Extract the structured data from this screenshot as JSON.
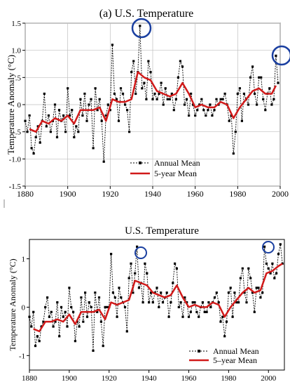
{
  "chart_data": [
    {
      "type": "line",
      "title": "(a) U.S. Temperature",
      "ylabel": "Temperature Anomaly (°C)",
      "xlabel": "",
      "xlim": [
        1880,
        2000
      ],
      "ylim": [
        -1.5,
        1.5
      ],
      "xticks": [
        "1880",
        "1900",
        "1920",
        "1940",
        "1960",
        "1980",
        "2000"
      ],
      "yticks": [
        "1.5",
        "1.0",
        ".5",
        "0",
        "-.5",
        "-1.0",
        "-1.5"
      ],
      "grid": true,
      "legend": "bottom-center",
      "series": [
        {
          "name": "Annual Mean",
          "x": [
            1880,
            1881,
            1882,
            1883,
            1884,
            1885,
            1886,
            1887,
            1888,
            1889,
            1890,
            1891,
            1892,
            1893,
            1894,
            1895,
            1896,
            1897,
            1898,
            1899,
            1900,
            1901,
            1902,
            1903,
            1904,
            1905,
            1906,
            1907,
            1908,
            1909,
            1910,
            1911,
            1912,
            1913,
            1914,
            1915,
            1916,
            1917,
            1918,
            1919,
            1920,
            1921,
            1922,
            1923,
            1924,
            1925,
            1926,
            1927,
            1928,
            1929,
            1930,
            1931,
            1932,
            1933,
            1934,
            1935,
            1936,
            1937,
            1938,
            1939,
            1940,
            1941,
            1942,
            1943,
            1944,
            1945,
            1946,
            1947,
            1948,
            1949,
            1950,
            1951,
            1952,
            1953,
            1954,
            1955,
            1956,
            1957,
            1958,
            1959,
            1960,
            1961,
            1962,
            1963,
            1964,
            1965,
            1966,
            1967,
            1968,
            1969,
            1970,
            1971,
            1972,
            1973,
            1974,
            1975,
            1976,
            1977,
            1978,
            1979,
            1980,
            1981,
            1982,
            1983,
            1984,
            1985,
            1986,
            1987,
            1988,
            1989,
            1990,
            1991,
            1992,
            1993,
            1994,
            1995,
            1996,
            1997,
            1998,
            1999
          ],
          "values": [
            -0.3,
            -0.5,
            -0.2,
            -0.8,
            -0.9,
            -0.6,
            -0.4,
            -0.7,
            -0.3,
            0.2,
            -0.4,
            -0.2,
            -0.5,
            -0.3,
            0.0,
            -0.6,
            -0.1,
            -0.3,
            -0.2,
            -0.5,
            0.3,
            -0.2,
            -0.1,
            -0.6,
            -0.4,
            -0.5,
            0.1,
            -0.2,
            0.2,
            -0.3,
            0.0,
            0.1,
            -0.8,
            0.3,
            -0.1,
            0.1,
            -0.3,
            -1.05,
            -0.2,
            0.0,
            -0.1,
            1.1,
            0.2,
            0.1,
            -0.3,
            0.3,
            0.2,
            0.0,
            -0.1,
            -0.5,
            0.6,
            0.8,
            0.2,
            0.6,
            1.45,
            0.3,
            0.4,
            0.1,
            0.8,
            0.6,
            0.1,
            0.2,
            0.1,
            0.2,
            0.4,
            0.0,
            0.3,
            0.1,
            0.1,
            0.2,
            -0.1,
            0.1,
            0.5,
            0.8,
            0.7,
            0.0,
            0.1,
            -0.2,
            0.2,
            0.0,
            -0.2,
            -0.1,
            0.0,
            0.1,
            -0.1,
            -0.2,
            -0.1,
            0.0,
            -0.2,
            -0.1,
            0.1,
            0.0,
            0.1,
            0.1,
            0.2,
            0.0,
            -0.3,
            -0.2,
            -0.9,
            -0.5,
            0.2,
            0.3,
            -0.3,
            0.2,
            0.1,
            0.0,
            0.5,
            0.7,
            0.2,
            0.0,
            0.5,
            0.5,
            0.1,
            -0.1,
            0.2,
            0.3,
            0.0,
            0.1,
            0.9,
            0.4
          ]
        },
        {
          "name": "5-year Mean",
          "x": [
            1882,
            1885,
            1888,
            1891,
            1894,
            1897,
            1900,
            1903,
            1906,
            1909,
            1912,
            1915,
            1918,
            1921,
            1924,
            1927,
            1930,
            1933,
            1936,
            1939,
            1942,
            1945,
            1948,
            1951,
            1954,
            1957,
            1960,
            1963,
            1966,
            1969,
            1972,
            1975,
            1978,
            1981,
            1984,
            1987,
            1990,
            1993,
            1996,
            1998
          ],
          "values": [
            -0.45,
            -0.5,
            -0.3,
            -0.35,
            -0.25,
            -0.3,
            -0.2,
            -0.35,
            -0.1,
            -0.1,
            -0.1,
            -0.05,
            -0.3,
            0.1,
            0.05,
            0.05,
            0.1,
            0.6,
            0.5,
            0.45,
            0.25,
            0.2,
            0.15,
            0.2,
            0.4,
            0.2,
            -0.05,
            0.0,
            -0.05,
            -0.05,
            0.05,
            0.0,
            -0.25,
            -0.05,
            0.1,
            0.25,
            0.3,
            0.2,
            0.2,
            0.35
          ]
        }
      ]
    },
    {
      "type": "line",
      "title": "U.S. Temperature",
      "ylabel": "Temperature Anomaly (°C)",
      "xlabel": "",
      "xlim": [
        1880,
        2008
      ],
      "ylim": [
        -1.3,
        1.4
      ],
      "xticks": [
        "1880",
        "1900",
        "1920",
        "1940",
        "1960",
        "1980",
        "2000"
      ],
      "yticks": [
        "1",
        "0",
        "-1"
      ],
      "grid": false,
      "legend": "bottom-right",
      "series": [
        {
          "name": "Annual Mean",
          "x": [
            1880,
            1881,
            1882,
            1883,
            1884,
            1885,
            1886,
            1887,
            1888,
            1889,
            1890,
            1891,
            1892,
            1893,
            1894,
            1895,
            1896,
            1897,
            1898,
            1899,
            1900,
            1901,
            1902,
            1903,
            1904,
            1905,
            1906,
            1907,
            1908,
            1909,
            1910,
            1911,
            1912,
            1913,
            1914,
            1915,
            1916,
            1917,
            1918,
            1919,
            1920,
            1921,
            1922,
            1923,
            1924,
            1925,
            1926,
            1927,
            1928,
            1929,
            1930,
            1931,
            1932,
            1933,
            1934,
            1935,
            1936,
            1937,
            1938,
            1939,
            1940,
            1941,
            1942,
            1943,
            1944,
            1945,
            1946,
            1947,
            1948,
            1949,
            1950,
            1951,
            1952,
            1953,
            1954,
            1955,
            1956,
            1957,
            1958,
            1959,
            1960,
            1961,
            1962,
            1963,
            1964,
            1965,
            1966,
            1967,
            1968,
            1969,
            1970,
            1971,
            1972,
            1973,
            1974,
            1975,
            1976,
            1977,
            1978,
            1979,
            1980,
            1981,
            1982,
            1983,
            1984,
            1985,
            1986,
            1987,
            1988,
            1989,
            1990,
            1991,
            1992,
            1993,
            1994,
            1995,
            1996,
            1997,
            1998,
            1999,
            2000,
            2001,
            2002,
            2003,
            2004,
            2005,
            2006,
            2007
          ],
          "values": [
            -0.2,
            -0.4,
            -0.1,
            -0.8,
            -0.6,
            -0.7,
            -0.4,
            -0.3,
            0.0,
            0.2,
            -0.2,
            -0.1,
            -0.4,
            -0.3,
            0.1,
            -0.6,
            0.0,
            -0.2,
            -0.1,
            -0.4,
            0.4,
            0.0,
            -0.1,
            -0.7,
            -0.3,
            -0.4,
            0.2,
            -0.3,
            0.3,
            -0.2,
            0.1,
            0.0,
            -0.9,
            0.3,
            -0.1,
            0.2,
            -0.3,
            -0.8,
            0.0,
            0.0,
            0.0,
            1.1,
            0.3,
            0.2,
            -0.2,
            0.4,
            0.2,
            0.1,
            0.0,
            -0.5,
            0.6,
            0.9,
            0.3,
            0.7,
            1.25,
            0.4,
            0.5,
            0.1,
            0.9,
            0.7,
            0.1,
            0.3,
            0.1,
            0.3,
            0.4,
            0.0,
            0.3,
            0.1,
            0.2,
            0.3,
            -0.2,
            0.1,
            0.5,
            0.9,
            0.8,
            0.0,
            0.1,
            -0.2,
            0.2,
            0.1,
            -0.2,
            -0.1,
            0.1,
            0.1,
            -0.1,
            -0.2,
            0.0,
            0.1,
            -0.1,
            -0.1,
            0.1,
            0.0,
            0.1,
            0.2,
            0.3,
            0.1,
            -0.3,
            -0.2,
            -0.6,
            -0.3,
            0.3,
            0.4,
            -0.2,
            0.3,
            0.1,
            0.1,
            0.6,
            0.8,
            0.3,
            0.1,
            0.8,
            0.6,
            0.3,
            -0.1,
            0.4,
            0.4,
            0.2,
            0.3,
            1.25,
            0.9,
            0.8,
            0.7,
            0.9,
            0.6,
            0.7,
            1.1,
            1.3,
            0.9
          ]
        },
        {
          "name": "5–year Mean",
          "x": [
            1882,
            1885,
            1888,
            1891,
            1894,
            1897,
            1900,
            1903,
            1906,
            1909,
            1912,
            1915,
            1918,
            1921,
            1924,
            1927,
            1930,
            1933,
            1936,
            1939,
            1942,
            1945,
            1948,
            1951,
            1954,
            1957,
            1960,
            1963,
            1966,
            1969,
            1972,
            1975,
            1978,
            1981,
            1984,
            1987,
            1990,
            1993,
            1996,
            1999,
            2002,
            2005,
            2007
          ],
          "values": [
            -0.45,
            -0.5,
            -0.3,
            -0.3,
            -0.25,
            -0.3,
            -0.15,
            -0.35,
            -0.1,
            -0.1,
            -0.1,
            -0.05,
            -0.25,
            0.1,
            0.05,
            0.1,
            0.15,
            0.55,
            0.5,
            0.45,
            0.3,
            0.25,
            0.2,
            0.25,
            0.45,
            0.2,
            0.0,
            0.05,
            0.0,
            0.0,
            0.1,
            0.05,
            -0.2,
            0.0,
            0.15,
            0.3,
            0.4,
            0.3,
            0.35,
            0.7,
            0.75,
            0.85,
            0.9
          ]
        }
      ]
    }
  ]
}
